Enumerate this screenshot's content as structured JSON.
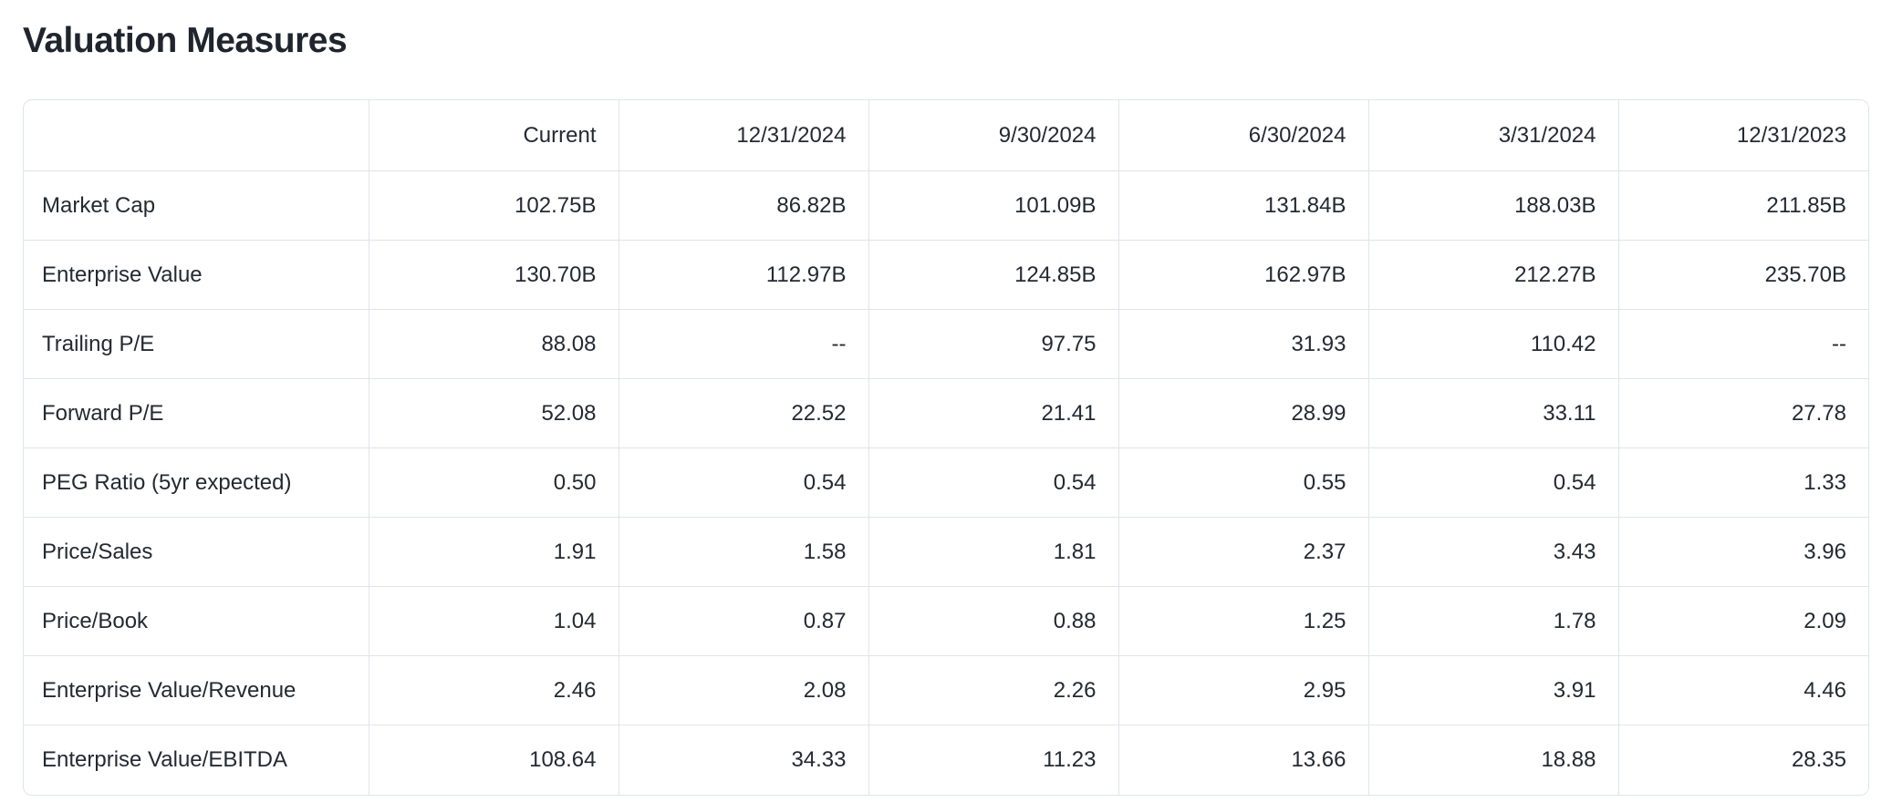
{
  "page": {
    "title": "Valuation Measures"
  },
  "colors": {
    "background": "#ffffff",
    "text": "#232a31",
    "title_text": "#1e252d",
    "border": "#e0e4e9"
  },
  "chart_data": {
    "type": "table",
    "title": "Valuation Measures",
    "columns": [
      "",
      "Current",
      "12/31/2024",
      "9/30/2024",
      "6/30/2024",
      "3/31/2024",
      "12/31/2023"
    ],
    "rows": [
      {
        "label": "Market Cap",
        "values": [
          "102.75B",
          "86.82B",
          "101.09B",
          "131.84B",
          "188.03B",
          "211.85B"
        ]
      },
      {
        "label": "Enterprise Value",
        "values": [
          "130.70B",
          "112.97B",
          "124.85B",
          "162.97B",
          "212.27B",
          "235.70B"
        ]
      },
      {
        "label": "Trailing P/E",
        "values": [
          "88.08",
          "--",
          "97.75",
          "31.93",
          "110.42",
          "--"
        ]
      },
      {
        "label": "Forward P/E",
        "values": [
          "52.08",
          "22.52",
          "21.41",
          "28.99",
          "33.11",
          "27.78"
        ]
      },
      {
        "label": "PEG Ratio (5yr expected)",
        "values": [
          "0.50",
          "0.54",
          "0.54",
          "0.55",
          "0.54",
          "1.33"
        ]
      },
      {
        "label": "Price/Sales",
        "values": [
          "1.91",
          "1.58",
          "1.81",
          "2.37",
          "3.43",
          "3.96"
        ]
      },
      {
        "label": "Price/Book",
        "values": [
          "1.04",
          "0.87",
          "0.88",
          "1.25",
          "1.78",
          "2.09"
        ]
      },
      {
        "label": "Enterprise Value/Revenue",
        "values": [
          "2.46",
          "2.08",
          "2.26",
          "2.95",
          "3.91",
          "4.46"
        ]
      },
      {
        "label": "Enterprise Value/EBITDA",
        "values": [
          "108.64",
          "34.33",
          "11.23",
          "13.66",
          "18.88",
          "28.35"
        ]
      }
    ]
  }
}
